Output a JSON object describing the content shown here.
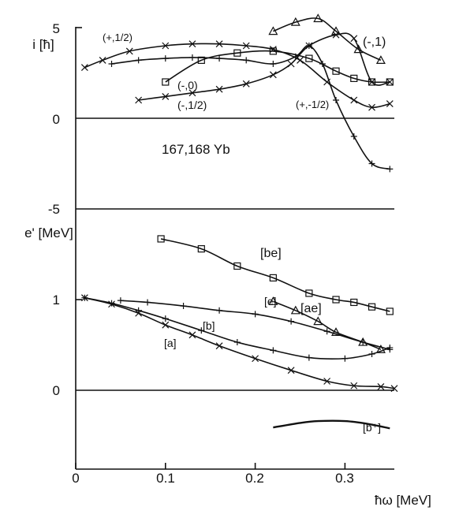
{
  "chart_data": [
    {
      "type": "line",
      "panel": "top",
      "ylabel": "i [ħ]",
      "annotation": "167,168 Yb",
      "yticks": [
        "5",
        "0",
        "-5"
      ],
      "ylim": [
        -5,
        5
      ],
      "xlim": [
        0,
        0.36
      ],
      "series": [
        {
          "name": "(+,1/2)",
          "marker": "x",
          "x": [
            0.01,
            0.03,
            0.06,
            0.1,
            0.13,
            0.16,
            0.19,
            0.22,
            0.25,
            0.28,
            0.31,
            0.33,
            0.35
          ],
          "y": [
            2.8,
            3.2,
            3.7,
            4.0,
            4.1,
            4.1,
            4.0,
            3.8,
            3.2,
            2.0,
            1.0,
            0.6,
            0.8
          ]
        },
        {
          "name": "(+,-1/2)",
          "marker": "+",
          "x": [
            0.04,
            0.07,
            0.1,
            0.13,
            0.16,
            0.19,
            0.22,
            0.245,
            0.26,
            0.275,
            0.29,
            0.31,
            0.33,
            0.35
          ],
          "y": [
            3.0,
            3.2,
            3.3,
            3.35,
            3.3,
            3.2,
            3.0,
            3.4,
            4.0,
            3.0,
            1.0,
            -1.0,
            -2.5,
            -2.8
          ]
        },
        {
          "name": "(-,0)",
          "marker": "square",
          "x": [
            0.1,
            0.14,
            0.18,
            0.22,
            0.26,
            0.29,
            0.31,
            0.33,
            0.35
          ],
          "y": [
            2.0,
            3.2,
            3.6,
            3.7,
            3.3,
            2.6,
            2.2,
            2.0,
            2.0
          ]
        },
        {
          "name": "(-,1/2)",
          "marker": "x",
          "x": [
            0.07,
            0.1,
            0.13,
            0.16,
            0.19,
            0.22,
            0.24,
            0.26,
            0.29,
            0.31,
            0.33,
            0.35
          ],
          "y": [
            1.0,
            1.2,
            1.4,
            1.6,
            1.9,
            2.4,
            3.0,
            4.0,
            4.6,
            4.4,
            2.0,
            2.0
          ]
        },
        {
          "name": "(-,1)",
          "marker": "triangle",
          "x": [
            0.22,
            0.245,
            0.27,
            0.29,
            0.315,
            0.34
          ],
          "y": [
            4.8,
            5.3,
            5.5,
            4.8,
            3.8,
            3.2
          ]
        }
      ]
    },
    {
      "type": "line",
      "panel": "bottom",
      "ylabel": "e' [MeV]",
      "xlabel": "ħω [MeV]",
      "yticks": [
        "1",
        "0"
      ],
      "xticks": [
        "0",
        "0.1",
        "0.2",
        "0.3"
      ],
      "ylim": [
        -0.72,
        1.8
      ],
      "xlim": [
        0,
        0.36
      ],
      "series": [
        {
          "name": "[be]",
          "marker": "square",
          "x": [
            0.095,
            0.14,
            0.18,
            0.22,
            0.26,
            0.29,
            0.31,
            0.33,
            0.35
          ],
          "y": [
            1.67,
            1.56,
            1.37,
            1.24,
            1.07,
            1.0,
            0.97,
            0.92,
            0.87
          ]
        },
        {
          "name": "[e]",
          "marker": "+",
          "x": [
            0.05,
            0.08,
            0.12,
            0.16,
            0.2,
            0.24,
            0.28,
            0.32,
            0.35
          ],
          "y": [
            0.99,
            0.97,
            0.93,
            0.88,
            0.84,
            0.76,
            0.65,
            0.53,
            0.45
          ]
        },
        {
          "name": "[ae]",
          "marker": "triangle",
          "x": [
            0.22,
            0.245,
            0.27,
            0.29,
            0.32,
            0.34
          ],
          "y": [
            0.98,
            0.88,
            0.76,
            0.64,
            0.53,
            0.45
          ]
        },
        {
          "name": "[b]",
          "marker": "+",
          "x": [
            0.01,
            0.04,
            0.07,
            0.1,
            0.14,
            0.18,
            0.22,
            0.26,
            0.3,
            0.33,
            0.35
          ],
          "y": [
            1.02,
            0.96,
            0.88,
            0.79,
            0.66,
            0.53,
            0.44,
            0.36,
            0.35,
            0.4,
            0.47
          ]
        },
        {
          "name": "[a]",
          "marker": "x",
          "x": [
            0.01,
            0.04,
            0.07,
            0.1,
            0.13,
            0.16,
            0.2,
            0.24,
            0.28,
            0.31,
            0.34,
            0.355
          ],
          "y": [
            1.02,
            0.95,
            0.85,
            0.72,
            0.61,
            0.49,
            0.35,
            0.22,
            0.1,
            0.05,
            0.04,
            0.02
          ]
        },
        {
          "name": "[b⁺]",
          "marker": "none",
          "x": [
            0.22,
            0.25,
            0.27,
            0.3,
            0.325,
            0.35
          ],
          "y": [
            -0.41,
            -0.36,
            -0.34,
            -0.34,
            -0.37,
            -0.42
          ]
        }
      ]
    }
  ]
}
